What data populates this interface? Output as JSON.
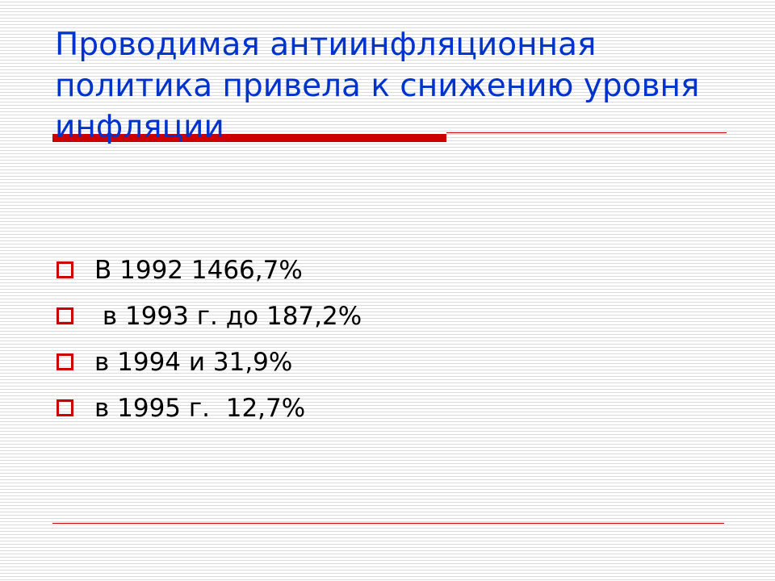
{
  "slide": {
    "title": "Проводимая антиинфляционная политика привела к снижению уровня инфляции",
    "bullets": [
      {
        "text": "В 1992 1466,7%"
      },
      {
        "text": " в 1993 г. до 187,2%"
      },
      {
        "text": "в 1994 и 31,9%"
      },
      {
        "text": "в 1995 г.  12,7%"
      }
    ],
    "colors": {
      "title": "#0033cc",
      "accent": "#cc0000",
      "text": "#000000"
    },
    "bullet_icon": "hollow-square-icon"
  }
}
